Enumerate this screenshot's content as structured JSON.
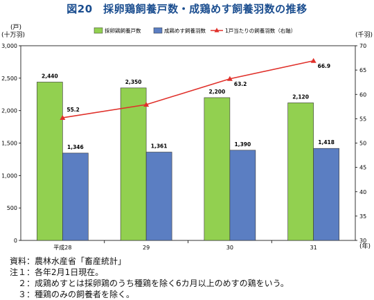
{
  "title": "図20　採卵鶏飼養戸数・成鶏めす飼養羽数の推移",
  "left_unit_line1": "(戸)",
  "left_unit_line2": "(十万羽)",
  "right_unit": "(千羽)",
  "x_unit": "(年)",
  "colors": {
    "bar1": "#92d050",
    "bar2": "#5b7ec2",
    "line": "#e0302a",
    "title": "#1a4d8f"
  },
  "chart_data": {
    "type": "bar+line",
    "categories": [
      "平成28",
      "29",
      "30",
      "31"
    ],
    "series": [
      {
        "name": "採卵鶏飼養戸数",
        "type": "bar",
        "axis": "left",
        "values": [
          2440,
          2350,
          2200,
          2120
        ],
        "labels": [
          "2,440",
          "2,350",
          "2,200",
          "2,120"
        ]
      },
      {
        "name": "成鶏めす飼養羽数",
        "type": "bar",
        "axis": "left",
        "values": [
          1346,
          1361,
          1390,
          1418
        ],
        "labels": [
          "1,346",
          "1,361",
          "1,390",
          "1,418"
        ]
      },
      {
        "name": "1戸当たりの飼養羽数（右軸）",
        "type": "line",
        "axis": "right",
        "values": [
          55.2,
          57.9,
          63.2,
          66.9
        ],
        "labels": [
          "55.2",
          "",
          "63.2",
          "66.9"
        ]
      }
    ],
    "y_left": {
      "min": 0,
      "max": 3000,
      "ticks": [
        "0",
        "500",
        "1,000",
        "1,500",
        "2,000",
        "2,500",
        "3,000"
      ]
    },
    "y_right": {
      "min": 30,
      "max": 70,
      "ticks": [
        "30",
        "35",
        "40",
        "45",
        "50",
        "55",
        "60",
        "65",
        "70"
      ]
    },
    "legend_position": "top",
    "grid": false
  },
  "notes": [
    "資料：農林水産省「畜産統計」",
    "注１：各年2月1日現在。",
    "　２：成鶏めすとは採卵鶏のうち種鶏を除く6カ月以上のめすの鶏をいう。",
    "　３：種鶏のみの飼養者を除く。"
  ]
}
